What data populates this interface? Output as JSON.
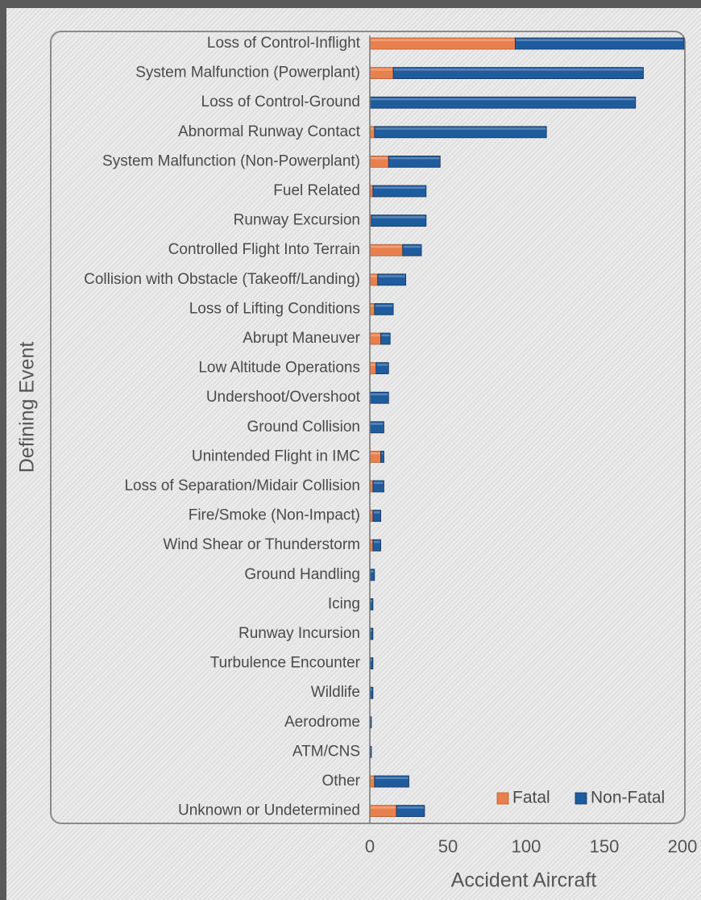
{
  "chart_data": {
    "type": "bar",
    "orientation": "horizontal",
    "stacked": true,
    "title": "",
    "xlabel": "Accident Aircraft",
    "ylabel": "Defining Event",
    "xlim": [
      0,
      200
    ],
    "xticks": [
      0,
      50,
      100,
      150,
      200
    ],
    "grid": false,
    "legend_position": "bottom-right",
    "categories": [
      "Loss of Control-Inflight",
      "System Malfunction (Powerplant)",
      "Loss of Control-Ground",
      "Abnormal Runway Contact",
      "System Malfunction (Non-Powerplant)",
      "Fuel Related",
      "Runway Excursion",
      "Controlled Flight Into Terrain",
      "Collision with Obstacle (Takeoff/Landing)",
      "Loss of Lifting Conditions",
      "Abrupt Maneuver",
      "Low Altitude Operations",
      "Undershoot/Overshoot",
      "Ground Collision",
      "Unintended Flight in IMC",
      "Loss of Separation/Midair Collision",
      "Fire/Smoke (Non-Impact)",
      "Wind Shear or Thunderstorm",
      "Ground Handling",
      "Icing",
      "Runway Incursion",
      "Turbulence Encounter",
      "Wildlife",
      "Aerodrome",
      "ATM/CNS",
      "Other",
      "Unknown or Undetermined"
    ],
    "series": [
      {
        "name": "Fatal",
        "color": "#e8804e",
        "values": [
          93,
          15,
          0,
          3,
          12,
          2,
          1,
          21,
          5,
          3,
          7,
          4,
          0,
          0,
          7,
          2,
          2,
          2,
          0,
          0,
          0,
          0,
          0,
          0,
          0,
          3,
          17
        ]
      },
      {
        "name": "Non-Fatal",
        "color": "#1f5c9e",
        "values": [
          108,
          160,
          170,
          110,
          33,
          34,
          35,
          12,
          18,
          12,
          6,
          8,
          12,
          9,
          2,
          7,
          5,
          5,
          3,
          2,
          2,
          2,
          2,
          1,
          1,
          22,
          18
        ]
      }
    ]
  }
}
